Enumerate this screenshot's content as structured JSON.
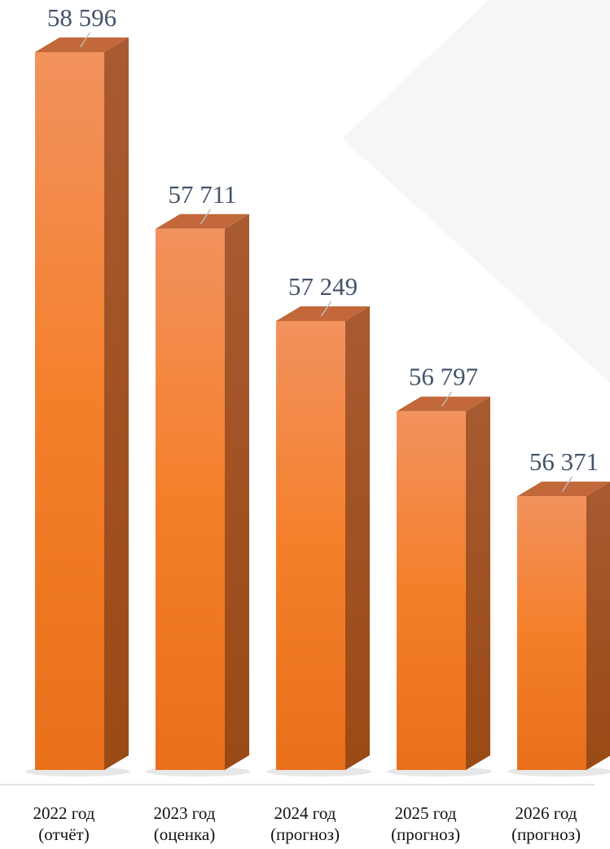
{
  "chart_data": {
    "type": "bar",
    "categories": [
      "2022 год\n(отчёт)",
      "2023 год\n(оценка)",
      "2024 год\n(прогноз)",
      "2025 год\n(прогноз)",
      "2026 год\n(прогноз)"
    ],
    "values": [
      58596,
      57711,
      57249,
      56797,
      56371
    ],
    "value_labels": [
      "58 596",
      "57 711",
      "57 249",
      "56 797",
      "56 371"
    ],
    "color": "#f07d2c",
    "ylim": [
      55000,
      59000
    ]
  }
}
